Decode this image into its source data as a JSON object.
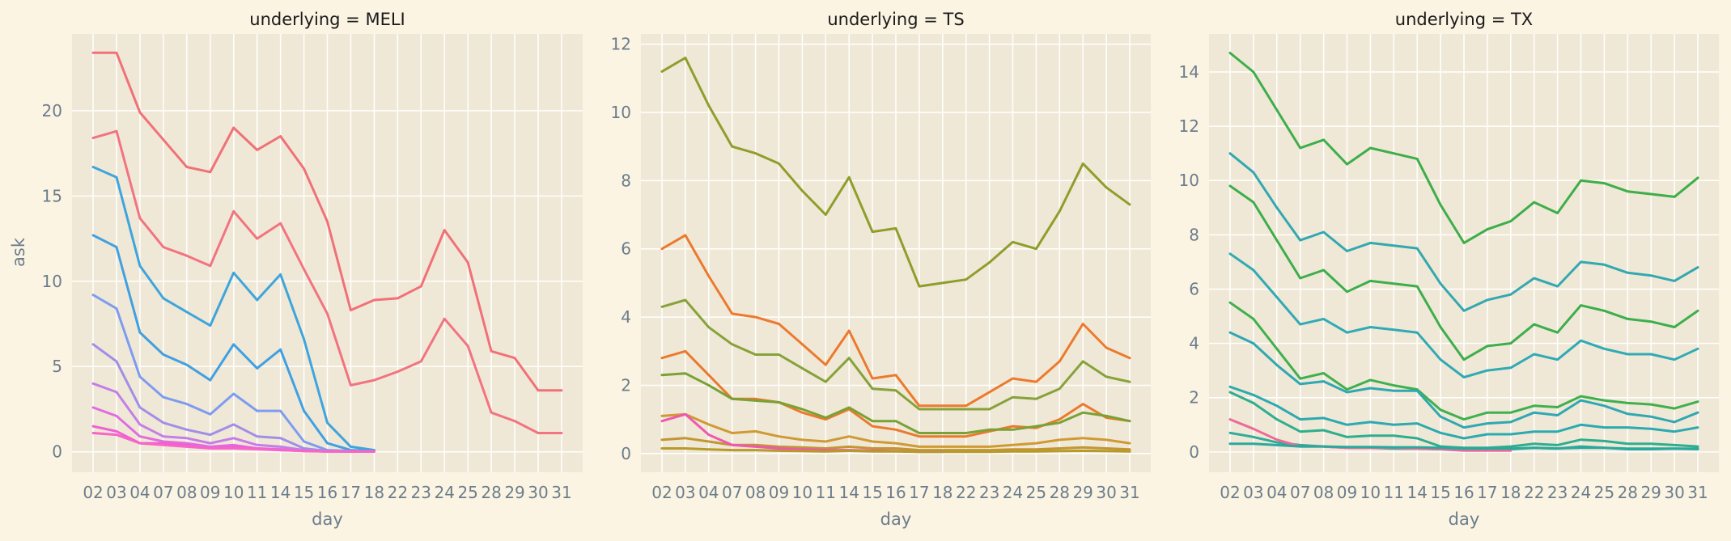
{
  "chart_data": {
    "type": "line",
    "ylabel": "ask",
    "xlabel": "day",
    "categories": [
      "02",
      "03",
      "04",
      "07",
      "08",
      "09",
      "10",
      "11",
      "14",
      "15",
      "16",
      "17",
      "18",
      "22",
      "23",
      "24",
      "25",
      "28",
      "29",
      "30",
      "31"
    ],
    "panels": [
      {
        "title": "underlying = MELI",
        "ylim": [
          -1.2,
          24.5
        ],
        "yticks": [
          0,
          5,
          10,
          15,
          20
        ],
        "series": [
          {
            "color": "#f07178",
            "values": [
              23.4,
              23.4,
              19.9,
              18.3,
              16.7,
              16.4,
              19.0,
              17.7,
              18.5,
              16.6,
              13.5,
              8.3,
              8.9,
              9.0,
              9.7,
              13.0,
              11.1,
              5.9,
              5.5,
              3.6,
              3.6
            ]
          },
          {
            "color": "#f17480",
            "values": [
              18.4,
              18.8,
              13.7,
              12.0,
              11.5,
              10.9,
              14.1,
              12.5,
              13.4,
              10.7,
              8.1,
              3.9,
              4.2,
              4.7,
              5.3,
              7.8,
              6.2,
              2.3,
              1.8,
              1.1,
              1.1
            ]
          },
          {
            "color": "#3ea5dc",
            "values": [
              16.7,
              16.1,
              10.9,
              9.0,
              8.2,
              7.4,
              10.5,
              8.9,
              10.4,
              6.6,
              1.7,
              0.3,
              0.1
            ]
          },
          {
            "color": "#40a0e2",
            "values": [
              12.7,
              12.0,
              7.0,
              5.7,
              5.1,
              4.2,
              6.3,
              4.9,
              6.0,
              2.4,
              0.5,
              0.1,
              0.05
            ]
          },
          {
            "color": "#7d9cf0",
            "values": [
              9.2,
              8.4,
              4.4,
              3.2,
              2.8,
              2.2,
              3.4,
              2.4,
              2.4,
              0.6,
              0.1,
              0.05,
              0.02
            ]
          },
          {
            "color": "#a08ee8",
            "values": [
              6.3,
              5.3,
              2.6,
              1.7,
              1.3,
              1.0,
              1.6,
              0.9,
              0.8,
              0.2,
              0.05,
              0.02,
              0.02
            ]
          },
          {
            "color": "#c47ee8",
            "values": [
              4.0,
              3.5,
              1.6,
              0.9,
              0.8,
              0.5,
              0.8,
              0.4,
              0.3,
              0.1,
              0.03,
              0.02,
              0.02
            ]
          },
          {
            "color": "#e06de0",
            "values": [
              2.6,
              2.1,
              0.9,
              0.6,
              0.5,
              0.3,
              0.4,
              0.2,
              0.15,
              0.05,
              0.02,
              0.02,
              0.02
            ]
          },
          {
            "color": "#f060d4",
            "values": [
              1.5,
              1.2,
              0.5,
              0.5,
              0.4,
              0.2,
              0.3,
              0.2,
              0.1,
              0.05,
              0.02,
              0.02,
              0.02
            ]
          },
          {
            "color": "#f566c8",
            "values": [
              1.1,
              1.0,
              0.5,
              0.4,
              0.3,
              0.2,
              0.2,
              0.15,
              0.1,
              0.04,
              0.02,
              0.02,
              0.02
            ]
          }
        ]
      },
      {
        "title": "underlying = TS",
        "ylim": [
          -0.55,
          12.3
        ],
        "yticks": [
          0,
          2,
          4,
          6,
          8,
          10,
          12
        ],
        "series": [
          {
            "color": "#8e9e2c",
            "values": [
              11.2,
              11.6,
              10.2,
              9.0,
              8.8,
              8.5,
              7.7,
              7.0,
              8.1,
              6.5,
              6.6,
              4.9,
              5.0,
              5.1,
              5.6,
              6.2,
              6.0,
              7.1,
              8.5,
              7.8,
              7.3
            ]
          },
          {
            "color": "#ec7a2e",
            "values": [
              6.0,
              6.4,
              5.2,
              4.1,
              4.0,
              3.8,
              3.2,
              2.6,
              3.6,
              2.2,
              2.3,
              1.4,
              1.4,
              1.4,
              1.8,
              2.2,
              2.1,
              2.7,
              3.8,
              3.1,
              2.8
            ]
          },
          {
            "color": "#86a23a",
            "values": [
              4.3,
              4.5,
              3.7,
              3.2,
              2.9,
              2.9,
              2.5,
              2.1,
              2.8,
              1.9,
              1.85,
              1.3,
              1.3,
              1.3,
              1.3,
              1.65,
              1.6,
              1.9,
              2.7,
              2.25,
              2.1
            ]
          },
          {
            "color": "#ea7a2e",
            "values": [
              2.8,
              3.0,
              2.3,
              1.6,
              1.6,
              1.5,
              1.2,
              1.0,
              1.3,
              0.8,
              0.7,
              0.5,
              0.5,
              0.5,
              0.65,
              0.8,
              0.75,
              1.0,
              1.45,
              1.05,
              0.95
            ]
          },
          {
            "color": "#78a236",
            "values": [
              2.3,
              2.35,
              2.0,
              1.6,
              1.55,
              1.5,
              1.3,
              1.05,
              1.35,
              0.95,
              0.95,
              0.6,
              0.6,
              0.6,
              0.7,
              0.7,
              0.8,
              0.9,
              1.2,
              1.1,
              0.95
            ]
          },
          {
            "color": "#cf9a34",
            "values": [
              1.1,
              1.15,
              0.85,
              0.6,
              0.65,
              0.5,
              0.4,
              0.35,
              0.5,
              0.35,
              0.3,
              0.2,
              0.2,
              0.2,
              0.2,
              0.25,
              0.3,
              0.4,
              0.45,
              0.4,
              0.3
            ]
          },
          {
            "color": "#c29632",
            "values": [
              0.4,
              0.45,
              0.35,
              0.25,
              0.25,
              0.2,
              0.18,
              0.15,
              0.2,
              0.15,
              0.15,
              0.1,
              0.1,
              0.1,
              0.1,
              0.12,
              0.12,
              0.15,
              0.18,
              0.15,
              0.12
            ]
          },
          {
            "color": "#ee58b0",
            "values": [
              0.95,
              1.15,
              0.55,
              0.25,
              0.2,
              0.15,
              0.12,
              0.1,
              0.1,
              0.08,
              0.07,
              0.05,
              0.05
            ]
          },
          {
            "color": "#b89a2a",
            "values": [
              0.15,
              0.15,
              0.12,
              0.1,
              0.1,
              0.08,
              0.07,
              0.06,
              0.08,
              0.06,
              0.06,
              0.05,
              0.05,
              0.05,
              0.05,
              0.06,
              0.06,
              0.07,
              0.08,
              0.07,
              0.06
            ]
          }
        ]
      },
      {
        "title": "underlying = TX",
        "ylim": [
          -0.75,
          15.4
        ],
        "yticks": [
          0,
          2,
          4,
          6,
          8,
          10,
          12,
          14
        ],
        "series": [
          {
            "color": "#3dae4a",
            "values": [
              14.7,
              14.0,
              12.6,
              11.2,
              11.5,
              10.6,
              11.2,
              11.0,
              10.8,
              9.1,
              7.7,
              8.2,
              8.5,
              9.2,
              8.8,
              10.0,
              9.9,
              9.6,
              9.5,
              9.4,
              10.1
            ]
          },
          {
            "color": "#33a8b0",
            "values": [
              11.0,
              10.3,
              9.0,
              7.8,
              8.1,
              7.4,
              7.7,
              7.6,
              7.5,
              6.2,
              5.2,
              5.6,
              5.8,
              6.4,
              6.1,
              7.0,
              6.9,
              6.6,
              6.5,
              6.3,
              6.8
            ]
          },
          {
            "color": "#3cae4c",
            "values": [
              9.8,
              9.2,
              7.8,
              6.4,
              6.7,
              5.9,
              6.3,
              6.2,
              6.1,
              4.6,
              3.4,
              3.9,
              4.0,
              4.7,
              4.4,
              5.4,
              5.2,
              4.9,
              4.8,
              4.6,
              5.2
            ]
          },
          {
            "color": "#30aab4",
            "values": [
              7.3,
              6.7,
              5.7,
              4.7,
              4.9,
              4.4,
              4.6,
              4.5,
              4.4,
              3.4,
              2.75,
              3.0,
              3.1,
              3.6,
              3.4,
              4.1,
              3.8,
              3.6,
              3.6,
              3.4,
              3.8
            ]
          },
          {
            "color": "#3fb04e",
            "values": [
              5.5,
              4.9,
              3.8,
              2.7,
              2.9,
              2.3,
              2.65,
              2.45,
              2.3,
              1.55,
              1.2,
              1.45,
              1.45,
              1.7,
              1.65,
              2.05,
              1.9,
              1.8,
              1.75,
              1.6,
              1.85
            ]
          },
          {
            "color": "#2fa8b2",
            "values": [
              4.4,
              4.0,
              3.2,
              2.5,
              2.6,
              2.2,
              2.35,
              2.25,
              2.25,
              1.3,
              0.9,
              1.05,
              1.1,
              1.45,
              1.35,
              1.9,
              1.7,
              1.4,
              1.3,
              1.1,
              1.45
            ]
          },
          {
            "color": "#2caab0",
            "values": [
              2.4,
              2.1,
              1.7,
              1.2,
              1.25,
              1.0,
              1.1,
              1.0,
              1.05,
              0.7,
              0.5,
              0.65,
              0.65,
              0.75,
              0.75,
              1.0,
              0.9,
              0.9,
              0.85,
              0.75,
              0.9
            ]
          },
          {
            "color": "#2eae8e",
            "values": [
              2.2,
              1.8,
              1.2,
              0.75,
              0.8,
              0.55,
              0.6,
              0.6,
              0.5,
              0.2,
              0.15,
              0.15,
              0.2,
              0.3,
              0.25,
              0.45,
              0.4,
              0.3,
              0.3,
              0.25,
              0.2
            ]
          },
          {
            "color": "#30ac9a",
            "values": [
              0.7,
              0.55,
              0.35,
              0.25,
              0.2,
              0.15,
              0.15,
              0.12,
              0.12,
              0.1,
              0.08,
              0.1,
              0.1,
              0.15,
              0.12,
              0.2,
              0.15,
              0.1,
              0.1,
              0.12,
              0.1
            ]
          },
          {
            "color": "#ee6a96",
            "values": [
              1.2,
              0.85,
              0.45,
              0.2,
              0.2,
              0.15,
              0.15,
              0.15,
              0.12,
              0.1,
              0.05,
              0.05,
              0.05
            ]
          },
          {
            "color": "#2aa89e",
            "values": [
              0.3,
              0.3,
              0.25,
              0.2,
              0.2,
              0.18,
              0.18,
              0.17,
              0.17,
              0.15,
              0.12,
              0.12,
              0.12,
              0.15,
              0.13,
              0.15,
              0.15,
              0.12,
              0.12,
              0.12,
              0.12
            ]
          }
        ]
      }
    ]
  }
}
